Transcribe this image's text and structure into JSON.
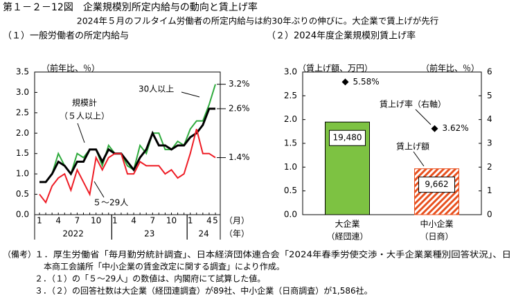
{
  "title": "第１－２－12図　企業規模別所定内給与の動向と賃上げ率",
  "subtitle": "2024年５月のフルタイム労働者の所定内給与は約30年ぶりの伸びに。大企業で賃上げが先行",
  "chart_data": [
    {
      "type": "line",
      "panel_title": "（１）一般労働者の所定内給与",
      "y_label": "（前年比、％）",
      "categories": [
        "1",
        null,
        null,
        "4",
        null,
        null,
        "7",
        null,
        null,
        "10",
        null,
        null,
        "1",
        null,
        null,
        "4",
        null,
        null,
        "7",
        null,
        null,
        "10",
        null,
        null,
        "1",
        null,
        null,
        "4",
        "5"
      ],
      "year_labels": [
        "2022",
        "23",
        "24"
      ],
      "x_unit": "（月）",
      "year_unit": "（年）",
      "ylim": [
        0,
        3.5
      ],
      "yticks": [
        {
          "value": 0,
          "label": "0.0"
        },
        0.5,
        {
          "value": 1,
          "label": "1.0"
        },
        1.5,
        {
          "value": 2,
          "label": "2.0"
        },
        2.5,
        {
          "value": 3,
          "label": "3.0"
        },
        3.5
      ],
      "series": [
        {
          "name_lines": [
            "30人以上"
          ],
          "color": "#2eaa3c",
          "width": 2,
          "end_label": "3.2%",
          "values": [
            0.8,
            0.8,
            1.0,
            1.5,
            1.2,
            1.0,
            1.5,
            1.4,
            1.6,
            1.6,
            1.2,
            1.7,
            1.5,
            1.5,
            1.2,
            1.1,
            1.7,
            1.5,
            2.0,
            2.0,
            1.6,
            1.6,
            1.8,
            1.7,
            2.1,
            2.3,
            2.3,
            2.7,
            3.2
          ]
        },
        {
          "name_lines": [
            "規模計",
            "（５人以上）"
          ],
          "color": "#000000",
          "width": 3,
          "end_label": "2.6%",
          "values": [
            0.8,
            0.8,
            1.0,
            1.3,
            1.2,
            1.0,
            1.3,
            1.3,
            1.6,
            1.6,
            1.3,
            1.6,
            1.5,
            1.5,
            1.3,
            1.1,
            1.4,
            1.6,
            2.0,
            1.7,
            1.7,
            1.6,
            1.7,
            1.7,
            1.9,
            2.0,
            2.2,
            2.6,
            2.6
          ]
        },
        {
          "name_lines": [
            "５～29人"
          ],
          "color": "#ee1c25",
          "width": 2,
          "end_label": "1.4%",
          "values": [
            0.5,
            0.3,
            0.7,
            0.9,
            1.0,
            0.6,
            1.1,
            0.8,
            0.5,
            1.4,
            1.1,
            1.4,
            1.5,
            1.5,
            1.0,
            1.0,
            1.3,
            1.2,
            1.2,
            1.2,
            1.0,
            1.1,
            0.9,
            1.0,
            1.5,
            2.1,
            1.5,
            1.5,
            1.4
          ]
        }
      ]
    },
    {
      "type": "bar_point",
      "panel_title": "（２）2024年度企業規模別賃上げ率",
      "y_label": "（賃上げ額、万円）",
      "y2_label": "（前年比、％）",
      "categories": [
        "大企業",
        "中小企業"
      ],
      "category_sublabels": [
        "（経団連）",
        "（日商）"
      ],
      "ylim": [
        0,
        3.0
      ],
      "yticks": [
        {
          "value": 0,
          "label": "0.0"
        },
        0.5,
        {
          "value": 1,
          "label": "1.0"
        },
        1.5,
        {
          "value": 2,
          "label": "2.0"
        },
        2.5,
        {
          "value": 3,
          "label": "3.0"
        }
      ],
      "y2lim": [
        0,
        6
      ],
      "y2ticks": [
        0,
        1,
        2,
        3,
        4,
        5,
        6
      ],
      "series": [
        {
          "name": "賃上げ額",
          "type": "bar",
          "colors": [
            "#7dc242",
            "#e8501e"
          ],
          "patterns": [
            "solid",
            "hatch"
          ],
          "values": [
            1.948,
            0.9662
          ],
          "value_labels": [
            "19,480",
            "9,662"
          ]
        },
        {
          "name": "賃上げ率（右軸）",
          "type": "point",
          "axis": "y2",
          "color": "#000000",
          "values": [
            5.58,
            3.62
          ],
          "value_labels": [
            "5.58%",
            "3.62%"
          ]
        }
      ]
    }
  ],
  "notes": {
    "label": "（備考）",
    "items": [
      [
        "１．厚生労働省「毎月勤労統計調査」、日本経済団体連合会「2024年春季労使交渉・大手企業業種別回答状況」、日",
        "本商工会議所「中小企業の賃金改定に関する調査」により作成。"
      ],
      [
        "２．（１）の「５～29人」の数値は、内閣府にて試算した値。"
      ],
      [
        "３．（２）の回答社数は大企業（経団連調査）が89社、中小企業（日商調査）が1,586社。"
      ]
    ]
  }
}
